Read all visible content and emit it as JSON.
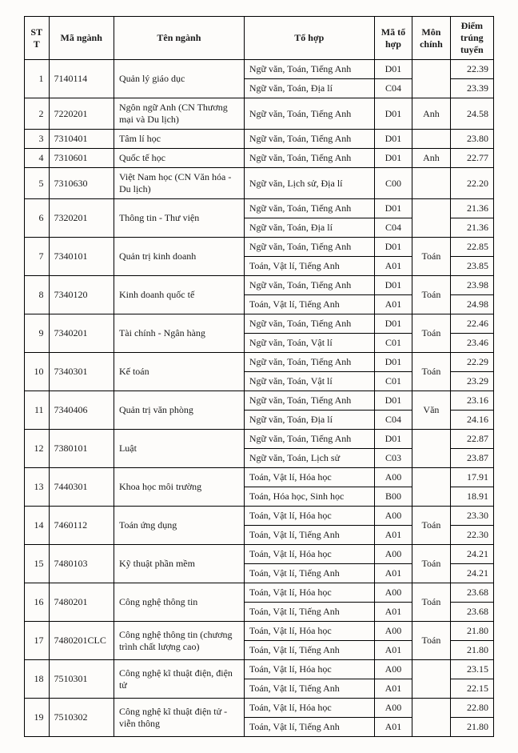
{
  "headers": {
    "stt": "STT",
    "maNganh": "Mã ngành",
    "tenNganh": "Tên ngành",
    "toHop": "Tổ hợp",
    "maToHop": "Mã tổ hợp",
    "monChinh": "Môn chính",
    "diem": "Điểm trúng tuyển"
  },
  "rows": [
    {
      "stt": "1",
      "ma": "7140114",
      "ten": "Quản lý giáo dục",
      "sub": [
        {
          "th": "Ngữ văn, Toán, Tiếng Anh",
          "mth": "D01",
          "mon": "",
          "diem": "22.39"
        },
        {
          "th": "Ngữ văn, Toán, Địa lí",
          "mth": "C04",
          "mon": "",
          "diem": "23.39"
        }
      ]
    },
    {
      "stt": "2",
      "ma": "7220201",
      "ten": "Ngôn ngữ Anh (CN Thương mại và Du lịch)",
      "sub": [
        {
          "th": "Ngữ văn, Toán, Tiếng Anh",
          "mth": "D01",
          "mon": "Anh",
          "diem": "24.58"
        }
      ]
    },
    {
      "stt": "3",
      "ma": "7310401",
      "ten": "Tâm lí học",
      "sub": [
        {
          "th": "Ngữ văn, Toán, Tiếng Anh",
          "mth": "D01",
          "mon": "",
          "diem": "23.80"
        }
      ]
    },
    {
      "stt": "4",
      "ma": "7310601",
      "ten": "Quốc tế học",
      "sub": [
        {
          "th": "Ngữ văn, Toán, Tiếng Anh",
          "mth": "D01",
          "mon": "Anh",
          "diem": "22.77"
        }
      ]
    },
    {
      "stt": "5",
      "ma": "7310630",
      "ten": "Việt Nam học (CN Văn hóa - Du lịch)",
      "sub": [
        {
          "th": "Ngữ văn, Lịch sử, Địa lí",
          "mth": "C00",
          "mon": "",
          "diem": "22.20"
        }
      ]
    },
    {
      "stt": "6",
      "ma": "7320201",
      "ten": "Thông tin - Thư viện",
      "sub": [
        {
          "th": "Ngữ văn, Toán, Tiếng Anh",
          "mth": "D01",
          "mon": "",
          "diem": "21.36"
        },
        {
          "th": "Ngữ văn, Toán, Địa lí",
          "mth": "C04",
          "mon": "",
          "diem": "21.36"
        }
      ]
    },
    {
      "stt": "7",
      "ma": "7340101",
      "ten": "Quản trị kinh doanh",
      "sub": [
        {
          "th": "Ngữ văn, Toán, Tiếng Anh",
          "mth": "D01",
          "mon": "Toán",
          "diem": "22.85"
        },
        {
          "th": "Toán, Vật lí, Tiếng Anh",
          "mth": "A01",
          "mon": "",
          "diem": "23.85"
        }
      ]
    },
    {
      "stt": "8",
      "ma": "7340120",
      "ten": "Kinh doanh quốc tế",
      "sub": [
        {
          "th": "Ngữ văn, Toán, Tiếng Anh",
          "mth": "D01",
          "mon": "Toán",
          "diem": "23.98"
        },
        {
          "th": "Toán, Vật lí, Tiếng Anh",
          "mth": "A01",
          "mon": "",
          "diem": "24.98"
        }
      ]
    },
    {
      "stt": "9",
      "ma": "7340201",
      "ten": "Tài chính - Ngân hàng",
      "sub": [
        {
          "th": "Ngữ văn, Toán, Tiếng Anh",
          "mth": "D01",
          "mon": "Toán",
          "diem": "22.46"
        },
        {
          "th": "Ngữ văn, Toán, Vật lí",
          "mth": "C01",
          "mon": "",
          "diem": "23.46"
        }
      ]
    },
    {
      "stt": "10",
      "ma": "7340301",
      "ten": "Kế toán",
      "sub": [
        {
          "th": "Ngữ văn, Toán, Tiếng Anh",
          "mth": "D01",
          "mon": "Toán",
          "diem": "22.29"
        },
        {
          "th": "Ngữ văn, Toán, Vật lí",
          "mth": "C01",
          "mon": "",
          "diem": "23.29"
        }
      ]
    },
    {
      "stt": "11",
      "ma": "7340406",
      "ten": "Quản trị văn phòng",
      "sub": [
        {
          "th": "Ngữ văn, Toán, Tiếng Anh",
          "mth": "D01",
          "mon": "Văn",
          "diem": "23.16"
        },
        {
          "th": "Ngữ văn, Toán, Địa lí",
          "mth": "C04",
          "mon": "",
          "diem": "24.16"
        }
      ]
    },
    {
      "stt": "12",
      "ma": "7380101",
      "ten": "Luật",
      "sub": [
        {
          "th": "Ngữ văn, Toán, Tiếng Anh",
          "mth": "D01",
          "mon": "",
          "diem": "22.87"
        },
        {
          "th": "Ngữ văn, Toán, Lịch sử",
          "mth": "C03",
          "mon": "",
          "diem": "23.87"
        }
      ]
    },
    {
      "stt": "13",
      "ma": "7440301",
      "ten": "Khoa học môi trường",
      "sub": [
        {
          "th": "Toán, Vật lí, Hóa học",
          "mth": "A00",
          "mon": "",
          "diem": "17.91"
        },
        {
          "th": "Toán, Hóa học, Sinh học",
          "mth": "B00",
          "mon": "",
          "diem": "18.91"
        }
      ]
    },
    {
      "stt": "14",
      "ma": "7460112",
      "ten": "Toán ứng dụng",
      "sub": [
        {
          "th": "Toán, Vật lí, Hóa học",
          "mth": "A00",
          "mon": "Toán",
          "diem": "23.30"
        },
        {
          "th": "Toán, Vật lí, Tiếng Anh",
          "mth": "A01",
          "mon": "",
          "diem": "22.30"
        }
      ]
    },
    {
      "stt": "15",
      "ma": "7480103",
      "ten": "Kỹ thuật phần mềm",
      "sub": [
        {
          "th": "Toán, Vật lí, Hóa học",
          "mth": "A00",
          "mon": "Toán",
          "diem": "24.21"
        },
        {
          "th": "Toán, Vật lí, Tiếng Anh",
          "mth": "A01",
          "mon": "",
          "diem": "24.21"
        }
      ]
    },
    {
      "stt": "16",
      "ma": "7480201",
      "ten": "Công nghệ thông tin",
      "sub": [
        {
          "th": "Toán, Vật lí, Hóa học",
          "mth": "A00",
          "mon": "Toán",
          "diem": "23.68"
        },
        {
          "th": "Toán, Vật lí, Tiếng Anh",
          "mth": "A01",
          "mon": "",
          "diem": "23.68"
        }
      ]
    },
    {
      "stt": "17",
      "ma": "7480201CLC",
      "ten": "Công nghệ thông tin (chương trình chất lượng cao)",
      "sub": [
        {
          "th": "Toán, Vật lí, Hóa học",
          "mth": "A00",
          "mon": "Toán",
          "diem": "21.80"
        },
        {
          "th": "Toán, Vật lí, Tiếng Anh",
          "mth": "A01",
          "mon": "",
          "diem": "21.80"
        }
      ]
    },
    {
      "stt": "18",
      "ma": "7510301",
      "ten": "Công nghệ kĩ thuật điện, điện tử",
      "sub": [
        {
          "th": "Toán, Vật lí, Hóa học",
          "mth": "A00",
          "mon": "",
          "diem": "23.15"
        },
        {
          "th": "Toán, Vật lí, Tiếng Anh",
          "mth": "A01",
          "mon": "",
          "diem": "22.15"
        }
      ]
    },
    {
      "stt": "19",
      "ma": "7510302",
      "ten": "Công nghệ kĩ thuật điện tử - viễn thông",
      "sub": [
        {
          "th": "Toán, Vật lí, Hóa học",
          "mth": "A00",
          "mon": "",
          "diem": "22.80"
        },
        {
          "th": "Toán, Vật lí, Tiếng Anh",
          "mth": "A01",
          "mon": "",
          "diem": "21.80"
        }
      ]
    }
  ]
}
